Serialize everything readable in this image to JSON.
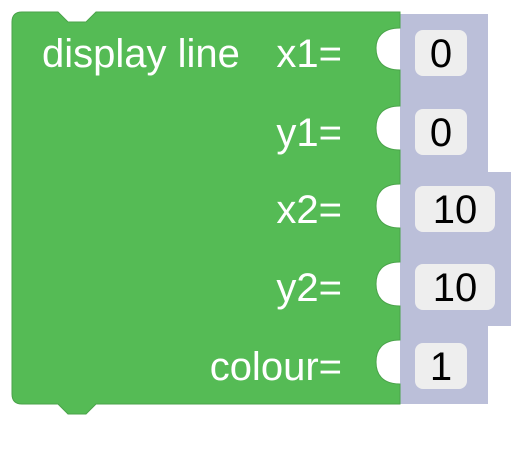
{
  "block": {
    "color": "#55bb55",
    "shadow_color": "#bbbfd9",
    "field_color": "#eeeeee",
    "title": "display line",
    "inputs": [
      {
        "label": "x1=",
        "value": "0"
      },
      {
        "label": "y1=",
        "value": "0"
      },
      {
        "label": "x2=",
        "value": "10"
      },
      {
        "label": "y2=",
        "value": "10"
      },
      {
        "label": "colour=",
        "value": "1"
      }
    ]
  }
}
